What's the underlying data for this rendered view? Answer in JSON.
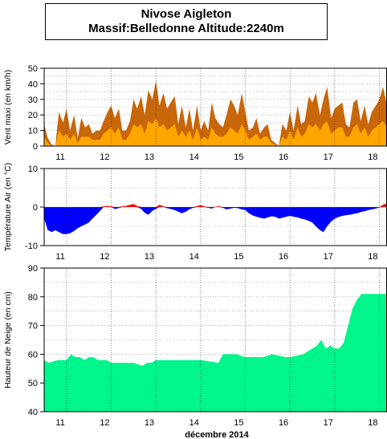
{
  "header": {
    "title": "Nivose Aigleton",
    "subtitle": "Massif:Belledonne Altitude:2240m"
  },
  "x_axis": {
    "day_labels": [
      "11",
      "12",
      "13",
      "14",
      "15",
      "16",
      "17",
      "18"
    ],
    "xlabel": "décembre 2014"
  },
  "colors": {
    "wind_max": "#c8660a",
    "wind_mean": "#ffa500",
    "temp_below": "#0000ff",
    "temp_above": "#ff0000",
    "snow": "#00f58c",
    "grid": "#888888"
  },
  "chart_data": [
    {
      "type": "area",
      "ylabel": "Vent maxi (en km/h)",
      "ylim": [
        0,
        50
      ],
      "yticks": [
        0,
        10,
        20,
        30,
        40,
        50
      ],
      "x": [
        10.5,
        10.58,
        10.67,
        10.75,
        10.83,
        10.92,
        11.0,
        11.08,
        11.17,
        11.25,
        11.33,
        11.42,
        11.5,
        11.58,
        11.67,
        11.75,
        11.83,
        11.92,
        12.0,
        12.08,
        12.17,
        12.25,
        12.33,
        12.42,
        12.5,
        12.58,
        12.67,
        12.75,
        12.83,
        12.92,
        13.0,
        13.08,
        13.17,
        13.25,
        13.33,
        13.42,
        13.5,
        13.58,
        13.67,
        13.75,
        13.83,
        13.92,
        14.0,
        14.08,
        14.17,
        14.25,
        14.33,
        14.42,
        14.5,
        14.58,
        14.67,
        14.75,
        14.83,
        14.92,
        15.0,
        15.08,
        15.17,
        15.25,
        15.33,
        15.42,
        15.5,
        15.58,
        15.67,
        15.75,
        15.83,
        15.92,
        16.0,
        16.08,
        16.17,
        16.25,
        16.33,
        16.42,
        16.5,
        16.58,
        16.67,
        16.75,
        16.83,
        16.92,
        17.0,
        17.08,
        17.17,
        17.25,
        17.33,
        17.42,
        17.5,
        17.58,
        17.67,
        17.75,
        17.83,
        17.92,
        18.0,
        18.08,
        18.17
      ],
      "series": [
        {
          "name": "",
          "values": [
            14,
            5,
            1,
            0,
            22,
            15,
            24,
            10,
            20,
            5,
            18,
            12,
            14,
            8,
            10,
            10,
            16,
            22,
            26,
            18,
            24,
            10,
            10,
            16,
            30,
            24,
            32,
            20,
            36,
            30,
            42,
            26,
            34,
            24,
            28,
            32,
            14,
            26,
            12,
            24,
            10,
            26,
            10,
            16,
            10,
            28,
            18,
            14,
            12,
            20,
            30,
            26,
            20,
            34,
            22,
            10,
            12,
            18,
            8,
            12,
            14,
            4,
            2,
            0,
            14,
            10,
            22,
            10,
            26,
            14,
            16,
            32,
            28,
            34,
            20,
            30,
            38,
            18,
            24,
            26,
            28,
            14,
            12,
            28,
            30,
            16,
            26,
            14,
            22,
            26,
            30,
            38,
            26
          ]
        },
        {
          "name": "",
          "values": [
            6,
            2,
            0,
            0,
            10,
            6,
            8,
            4,
            8,
            2,
            6,
            6,
            6,
            4,
            4,
            4,
            8,
            10,
            12,
            8,
            12,
            4,
            4,
            8,
            14,
            12,
            14,
            8,
            16,
            14,
            18,
            12,
            14,
            10,
            12,
            14,
            6,
            10,
            6,
            10,
            4,
            12,
            4,
            6,
            4,
            12,
            8,
            6,
            6,
            8,
            12,
            10,
            8,
            14,
            10,
            4,
            6,
            8,
            4,
            6,
            6,
            2,
            1,
            0,
            6,
            4,
            10,
            4,
            12,
            6,
            8,
            14,
            12,
            14,
            10,
            14,
            16,
            8,
            10,
            12,
            12,
            6,
            6,
            12,
            14,
            8,
            12,
            6,
            10,
            12,
            14,
            16,
            12
          ]
        }
      ]
    },
    {
      "type": "area",
      "ylabel": "Température Air (en °C)",
      "ylim": [
        -10,
        10
      ],
      "yticks": [
        -10,
        0,
        10
      ],
      "x": [
        10.5,
        10.58,
        10.67,
        10.75,
        10.83,
        10.92,
        11.0,
        11.08,
        11.17,
        11.25,
        11.33,
        11.42,
        11.5,
        11.58,
        11.67,
        11.75,
        11.83,
        11.92,
        12.0,
        12.08,
        12.17,
        12.25,
        12.33,
        12.42,
        12.5,
        12.58,
        12.67,
        12.75,
        12.83,
        12.92,
        13.0,
        13.08,
        13.17,
        13.25,
        13.33,
        13.42,
        13.5,
        13.58,
        13.67,
        13.75,
        13.83,
        13.92,
        14.0,
        14.08,
        14.17,
        14.25,
        14.33,
        14.42,
        14.5,
        14.58,
        14.67,
        14.75,
        14.83,
        14.92,
        15.0,
        15.08,
        15.17,
        15.25,
        15.33,
        15.42,
        15.5,
        15.58,
        15.67,
        15.75,
        15.83,
        15.92,
        16.0,
        16.08,
        16.17,
        16.25,
        16.33,
        16.42,
        16.5,
        16.58,
        16.67,
        16.75,
        16.83,
        16.92,
        17.0,
        17.08,
        17.17,
        17.25,
        17.33,
        17.42,
        17.5,
        17.58,
        17.67,
        17.75,
        17.83,
        17.92,
        18.0,
        18.08,
        18.17
      ],
      "values": [
        -3,
        -6,
        -6.5,
        -6,
        -6.5,
        -7,
        -7,
        -6.8,
        -6.2,
        -5.5,
        -5,
        -4.5,
        -4,
        -3,
        -2,
        -1,
        0.2,
        0.3,
        0.2,
        -0.5,
        -0.3,
        0.2,
        0.3,
        0.6,
        0.8,
        0.3,
        -0.5,
        -1.5,
        -2,
        -1,
        -0.5,
        0.6,
        0.2,
        -0.3,
        -0.5,
        -0.8,
        -1.2,
        -1.6,
        -1.2,
        -0.6,
        -0.2,
        0.3,
        0.5,
        0.2,
        -0.2,
        -0.4,
        0.1,
        0.2,
        -0.2,
        -0.6,
        -0.4,
        -0.2,
        -0.3,
        -0.6,
        -0.8,
        -1.6,
        -2.2,
        -2.5,
        -2.8,
        -3,
        -2.7,
        -2.4,
        -2.5,
        -3,
        -2.8,
        -2.5,
        -2.3,
        -2.5,
        -2.7,
        -3,
        -3.2,
        -3.6,
        -4,
        -5,
        -6,
        -6.5,
        -5,
        -3.8,
        -3,
        -2.6,
        -2.3,
        -2.1,
        -2,
        -1.8,
        -1.6,
        -1.3,
        -1.1,
        -0.8,
        -0.6,
        -0.4,
        -0.1,
        0.6,
        1
      ]
    },
    {
      "type": "area",
      "ylabel": "Hauteur de Neige (en cm)",
      "ylim": [
        40,
        90
      ],
      "yticks": [
        40,
        50,
        60,
        70,
        80,
        90
      ],
      "x": [
        10.5,
        10.6,
        10.8,
        10.9,
        11.0,
        11.1,
        11.2,
        11.3,
        11.4,
        11.5,
        11.6,
        11.7,
        11.8,
        11.9,
        12.0,
        12.1,
        12.5,
        12.7,
        12.8,
        12.9,
        13.0,
        13.5,
        13.7,
        14.0,
        14.4,
        14.5,
        14.8,
        15.0,
        15.4,
        15.6,
        15.9,
        16.0,
        16.3,
        16.4,
        16.5,
        16.6,
        16.7,
        16.8,
        16.9,
        17.0,
        17.1,
        17.2,
        17.3,
        17.4,
        17.5,
        17.6,
        17.7,
        17.8,
        17.9,
        18.0,
        18.17
      ],
      "values": [
        58,
        57,
        58,
        58,
        58,
        60,
        59,
        59,
        58,
        59,
        59,
        58,
        58,
        58,
        57,
        57,
        57,
        56,
        57,
        57,
        58,
        58,
        58,
        58,
        57,
        60,
        60,
        59,
        59,
        60,
        59,
        59,
        60,
        61,
        62,
        63,
        65,
        62,
        63,
        62,
        62,
        64,
        70,
        76,
        79,
        81,
        81,
        81,
        81,
        81,
        81
      ]
    }
  ]
}
